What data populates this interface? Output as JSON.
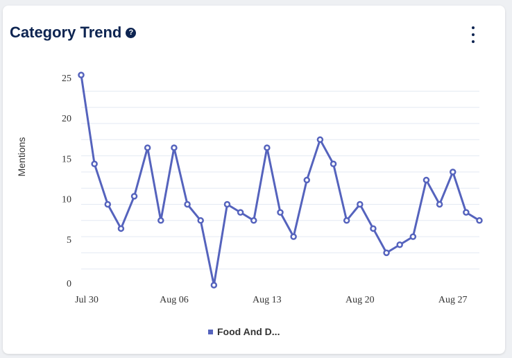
{
  "header": {
    "title": "Category Trend",
    "help_icon": "?"
  },
  "chart_data": {
    "type": "line",
    "title": "Category Trend",
    "xlabel": "",
    "ylabel": "Mentions",
    "ylim": [
      0,
      26
    ],
    "yticks": [
      0,
      5,
      10,
      15,
      20,
      25
    ],
    "grid": true,
    "x": [
      "Jul 30",
      "Jul 31",
      "Aug 01",
      "Aug 02",
      "Aug 03",
      "Aug 04",
      "Aug 05",
      "Aug 06",
      "Aug 07",
      "Aug 08",
      "Aug 09",
      "Aug 10",
      "Aug 11",
      "Aug 12",
      "Aug 13",
      "Aug 14",
      "Aug 15",
      "Aug 16",
      "Aug 17",
      "Aug 18",
      "Aug 19",
      "Aug 20",
      "Aug 21",
      "Aug 22",
      "Aug 23",
      "Aug 24",
      "Aug 25",
      "Aug 26",
      "Aug 27",
      "Aug 28",
      "Aug 29"
    ],
    "xtick_labels": [
      "Jul 30",
      "Aug 06",
      "Aug 13",
      "Aug 20",
      "Aug 27"
    ],
    "series": [
      {
        "name": "Food And D...",
        "color": "#5563bd",
        "values": [
          26,
          15,
          10,
          7,
          11,
          17,
          8,
          17,
          10,
          8,
          0,
          10,
          9,
          8,
          17,
          9,
          6,
          13,
          18,
          15,
          8,
          10,
          7,
          4,
          5,
          6,
          13,
          10,
          14,
          9,
          8
        ]
      }
    ],
    "legend": "bottom"
  }
}
